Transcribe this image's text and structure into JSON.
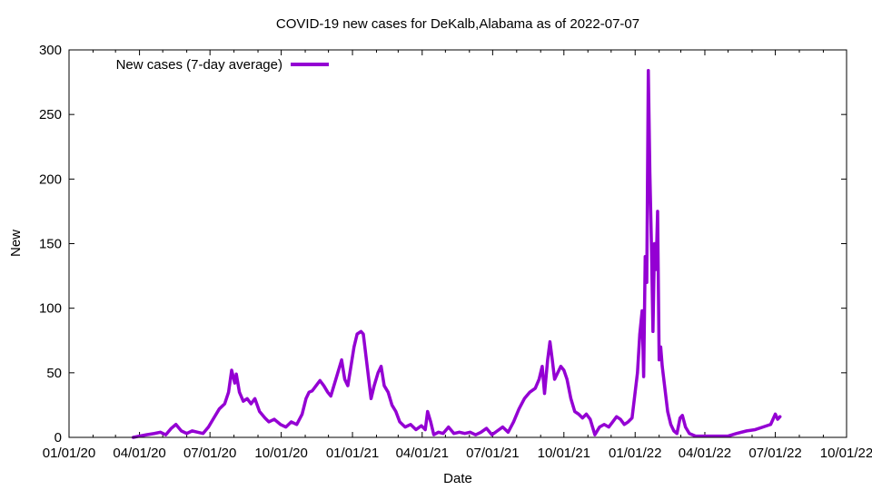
{
  "chart_data": {
    "type": "line",
    "title": "COVID-19 new cases for DeKalb,Alabama as of 2022-07-07",
    "xlabel": "Date",
    "ylabel": "New",
    "xlim": [
      "2020-01-01",
      "2022-10-01"
    ],
    "ylim": [
      0,
      300
    ],
    "x_ticks": [
      "01/01/20",
      "04/01/20",
      "07/01/20",
      "10/01/20",
      "01/01/21",
      "04/01/21",
      "07/01/21",
      "10/01/21",
      "01/01/22",
      "04/01/22",
      "07/01/22",
      "10/01/22"
    ],
    "y_ticks": [
      0,
      50,
      100,
      150,
      200,
      250,
      300
    ],
    "grid": false,
    "legend_position": "top-left",
    "series": [
      {
        "name": "New cases (7-day average)",
        "color": "#9400d3",
        "points": [
          [
            "2020-03-24",
            0
          ],
          [
            "2020-04-01",
            1
          ],
          [
            "2020-04-10",
            2
          ],
          [
            "2020-04-20",
            3
          ],
          [
            "2020-04-28",
            4
          ],
          [
            "2020-05-05",
            2
          ],
          [
            "2020-05-12",
            7
          ],
          [
            "2020-05-18",
            10
          ],
          [
            "2020-05-25",
            5
          ],
          [
            "2020-06-01",
            3
          ],
          [
            "2020-06-08",
            5
          ],
          [
            "2020-06-15",
            4
          ],
          [
            "2020-06-22",
            3
          ],
          [
            "2020-06-29",
            8
          ],
          [
            "2020-07-06",
            15
          ],
          [
            "2020-07-13",
            22
          ],
          [
            "2020-07-20",
            26
          ],
          [
            "2020-07-25",
            35
          ],
          [
            "2020-07-29",
            52
          ],
          [
            "2020-08-02",
            42
          ],
          [
            "2020-08-04",
            49
          ],
          [
            "2020-08-08",
            35
          ],
          [
            "2020-08-13",
            28
          ],
          [
            "2020-08-18",
            30
          ],
          [
            "2020-08-23",
            26
          ],
          [
            "2020-08-28",
            30
          ],
          [
            "2020-09-03",
            20
          ],
          [
            "2020-09-10",
            15
          ],
          [
            "2020-09-15",
            12
          ],
          [
            "2020-09-22",
            14
          ],
          [
            "2020-09-30",
            10
          ],
          [
            "2020-10-07",
            8
          ],
          [
            "2020-10-14",
            12
          ],
          [
            "2020-10-21",
            10
          ],
          [
            "2020-10-28",
            18
          ],
          [
            "2020-11-02",
            30
          ],
          [
            "2020-11-06",
            35
          ],
          [
            "2020-11-10",
            36
          ],
          [
            "2020-11-15",
            40
          ],
          [
            "2020-11-20",
            44
          ],
          [
            "2020-11-25",
            40
          ],
          [
            "2020-11-30",
            35
          ],
          [
            "2020-12-04",
            32
          ],
          [
            "2020-12-08",
            40
          ],
          [
            "2020-12-13",
            50
          ],
          [
            "2020-12-18",
            60
          ],
          [
            "2020-12-22",
            45
          ],
          [
            "2020-12-26",
            40
          ],
          [
            "2020-12-30",
            55
          ],
          [
            "2021-01-03",
            70
          ],
          [
            "2021-01-07",
            80
          ],
          [
            "2021-01-12",
            82
          ],
          [
            "2021-01-15",
            80
          ],
          [
            "2021-01-19",
            60
          ],
          [
            "2021-01-22",
            45
          ],
          [
            "2021-01-25",
            30
          ],
          [
            "2021-01-29",
            40
          ],
          [
            "2021-02-03",
            50
          ],
          [
            "2021-02-07",
            55
          ],
          [
            "2021-02-11",
            40
          ],
          [
            "2021-02-16",
            35
          ],
          [
            "2021-02-21",
            25
          ],
          [
            "2021-02-26",
            20
          ],
          [
            "2021-03-03",
            12
          ],
          [
            "2021-03-10",
            8
          ],
          [
            "2021-03-17",
            10
          ],
          [
            "2021-03-24",
            6
          ],
          [
            "2021-03-31",
            9
          ],
          [
            "2021-04-05",
            6
          ],
          [
            "2021-04-08",
            20
          ],
          [
            "2021-04-12",
            12
          ],
          [
            "2021-04-16",
            2
          ],
          [
            "2021-04-22",
            4
          ],
          [
            "2021-04-28",
            3
          ],
          [
            "2021-05-05",
            8
          ],
          [
            "2021-05-12",
            3
          ],
          [
            "2021-05-19",
            4
          ],
          [
            "2021-05-26",
            3
          ],
          [
            "2021-06-02",
            4
          ],
          [
            "2021-06-09",
            2
          ],
          [
            "2021-06-16",
            4
          ],
          [
            "2021-06-23",
            7
          ],
          [
            "2021-06-30",
            2
          ],
          [
            "2021-07-07",
            5
          ],
          [
            "2021-07-14",
            8
          ],
          [
            "2021-07-21",
            4
          ],
          [
            "2021-07-28",
            12
          ],
          [
            "2021-08-04",
            22
          ],
          [
            "2021-08-11",
            30
          ],
          [
            "2021-08-18",
            35
          ],
          [
            "2021-08-25",
            38
          ],
          [
            "2021-08-30",
            45
          ],
          [
            "2021-09-03",
            55
          ],
          [
            "2021-09-06",
            34
          ],
          [
            "2021-09-10",
            60
          ],
          [
            "2021-09-13",
            74
          ],
          [
            "2021-09-16",
            60
          ],
          [
            "2021-09-19",
            45
          ],
          [
            "2021-09-23",
            50
          ],
          [
            "2021-09-27",
            55
          ],
          [
            "2021-10-01",
            52
          ],
          [
            "2021-10-05",
            45
          ],
          [
            "2021-10-10",
            30
          ],
          [
            "2021-10-15",
            20
          ],
          [
            "2021-10-20",
            18
          ],
          [
            "2021-10-25",
            15
          ],
          [
            "2021-10-30",
            18
          ],
          [
            "2021-11-04",
            14
          ],
          [
            "2021-11-10",
            2
          ],
          [
            "2021-11-16",
            8
          ],
          [
            "2021-11-22",
            10
          ],
          [
            "2021-11-28",
            8
          ],
          [
            "2021-12-03",
            12
          ],
          [
            "2021-12-08",
            16
          ],
          [
            "2021-12-13",
            14
          ],
          [
            "2021-12-18",
            10
          ],
          [
            "2021-12-23",
            12
          ],
          [
            "2021-12-28",
            15
          ],
          [
            "2022-01-01",
            35
          ],
          [
            "2022-01-04",
            50
          ],
          [
            "2022-01-07",
            80
          ],
          [
            "2022-01-10",
            98
          ],
          [
            "2022-01-12",
            47
          ],
          [
            "2022-01-14",
            140
          ],
          [
            "2022-01-16",
            120
          ],
          [
            "2022-01-18",
            284
          ],
          [
            "2022-01-20",
            205
          ],
          [
            "2022-01-22",
            150
          ],
          [
            "2022-01-24",
            82
          ],
          [
            "2022-01-26",
            150
          ],
          [
            "2022-01-28",
            130
          ],
          [
            "2022-01-30",
            175
          ],
          [
            "2022-02-01",
            60
          ],
          [
            "2022-02-03",
            70
          ],
          [
            "2022-02-05",
            55
          ],
          [
            "2022-02-08",
            40
          ],
          [
            "2022-02-12",
            20
          ],
          [
            "2022-02-16",
            10
          ],
          [
            "2022-02-20",
            5
          ],
          [
            "2022-02-24",
            3
          ],
          [
            "2022-02-28",
            15
          ],
          [
            "2022-03-03",
            17
          ],
          [
            "2022-03-07",
            8
          ],
          [
            "2022-03-12",
            3
          ],
          [
            "2022-03-20",
            1
          ],
          [
            "2022-04-01",
            1
          ],
          [
            "2022-04-15",
            1
          ],
          [
            "2022-05-01",
            1
          ],
          [
            "2022-05-12",
            3
          ],
          [
            "2022-05-25",
            5
          ],
          [
            "2022-06-05",
            6
          ],
          [
            "2022-06-15",
            8
          ],
          [
            "2022-06-25",
            10
          ],
          [
            "2022-07-01",
            18
          ],
          [
            "2022-07-04",
            14
          ],
          [
            "2022-07-07",
            16
          ]
        ]
      }
    ]
  }
}
